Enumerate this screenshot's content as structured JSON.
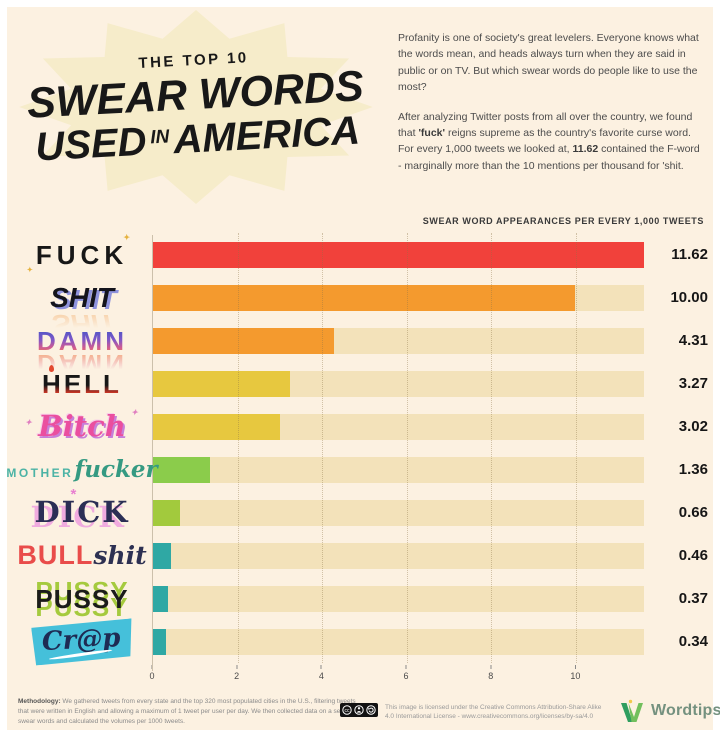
{
  "page": {
    "background": "#fcf1e1",
    "border": "#ffffff",
    "track_color": "#f3e2ba"
  },
  "header": {
    "kicker": "THE TOP 10",
    "title_line1": "SWEAR WORDS",
    "title_line2_a": "USED",
    "title_line2_b": "IN",
    "title_line2_c": "AMERICA"
  },
  "intro": {
    "p1": "Profanity is one of society's great levelers. Everyone knows what the words mean, and heads always turn when they are said in public or on TV. But which swear words do people like to use the most?",
    "p2_runs": [
      {
        "text": "After analyzing Twitter posts from all over the country, we found that ",
        "bold": false
      },
      {
        "text": "'fuck'",
        "bold": true
      },
      {
        "text": " reigns supreme as the country's favorite curse word. For every 1,000 tweets we looked at, ",
        "bold": false
      },
      {
        "text": "11.62",
        "bold": true
      },
      {
        "text": " contained the F-word - marginally more than the 10 mentions per thousand for 'shit.",
        "bold": false
      }
    ]
  },
  "chart_data": {
    "type": "bar",
    "orientation": "horizontal",
    "title": "SWEAR WORD APPEARANCES PER EVERY 1,000 TWEETS",
    "categories": [
      "Fuck",
      "Shit",
      "Damn",
      "Hell",
      "Bitch",
      "Motherfucker",
      "Dick",
      "Bullshit",
      "Pussy",
      "Crap"
    ],
    "values": [
      11.62,
      10.0,
      4.31,
      3.27,
      3.02,
      1.36,
      0.66,
      0.46,
      0.37,
      0.34
    ],
    "value_labels": [
      "11.62",
      "10.00",
      "4.31",
      "3.27",
      "3.02",
      "1.36",
      "0.66",
      "0.46",
      "0.37",
      "0.34"
    ],
    "bar_colors": [
      "#f1413b",
      "#f49a2e",
      "#f49a2e",
      "#e7c83f",
      "#e7c83f",
      "#8bcc4b",
      "#a2ca3d",
      "#2fa8a4",
      "#2fa8a4",
      "#2fa8a4"
    ],
    "track_color": "#f3e2ba",
    "xlim": [
      0,
      11.62
    ],
    "x_tick_labels": [
      "0",
      "2",
      "4",
      "6",
      "8",
      "10"
    ],
    "x_tick_values": [
      0,
      2,
      4,
      6,
      8,
      10
    ],
    "grid": "dotted-vertical",
    "legend": "none"
  },
  "wordart": [
    {
      "style": "fuck",
      "parts": [
        {
          "cls": "fuck",
          "text": "FUCK",
          "echo": true
        }
      ]
    },
    {
      "style": "shit",
      "parts": [
        {
          "cls": "shit",
          "text": "SHIT",
          "echo": true
        }
      ]
    },
    {
      "style": "damn",
      "parts": [
        {
          "cls": "damn",
          "text": "DAMN",
          "echo": true
        }
      ]
    },
    {
      "style": "hell",
      "parts": [
        {
          "cls": "hell",
          "text": "HELL"
        }
      ]
    },
    {
      "style": "bitch",
      "parts": [
        {
          "cls": "bitch",
          "text": "Bitch"
        }
      ]
    },
    {
      "style": "mofo",
      "parts": [
        {
          "cls": "mother",
          "text": "MOTHER"
        },
        {
          "cls": "fucker",
          "text": "fucker"
        }
      ]
    },
    {
      "style": "dick",
      "deco": "*",
      "parts": [
        {
          "cls": "dick",
          "text": "DICK"
        }
      ]
    },
    {
      "style": "bullshit",
      "parts": [
        {
          "cls": "bull",
          "text": "BULL"
        },
        {
          "cls": "shit2",
          "text": "shit"
        }
      ]
    },
    {
      "style": "pussy",
      "parts": [
        {
          "cls": "pussy",
          "text": "PUSSY",
          "echo": true
        }
      ]
    },
    {
      "style": "crap",
      "parts": [
        {
          "cls": "crap",
          "text": "Cr@p"
        }
      ]
    }
  ],
  "footer": {
    "methodology_label": "Methodology:",
    "methodology_text": " We gathered tweets from every state and the top 320 most populated cities in the U.S., filtering tweets that were written in English and allowing a maximum of 1 tweet per user per day. We then collected data on a selection of swear words and calculated the volumes per 1000 tweets.",
    "license_text": "This image is licensed under the Creative Commons Attribution-Share Alike 4.0 International License - www.creativecommons.org/licenses/by-sa/4.0",
    "brand": "Wordtips"
  },
  "icons": {
    "license_badge": "cc-by-sa-badge",
    "brand_mark": "wordtips-w-logo"
  }
}
